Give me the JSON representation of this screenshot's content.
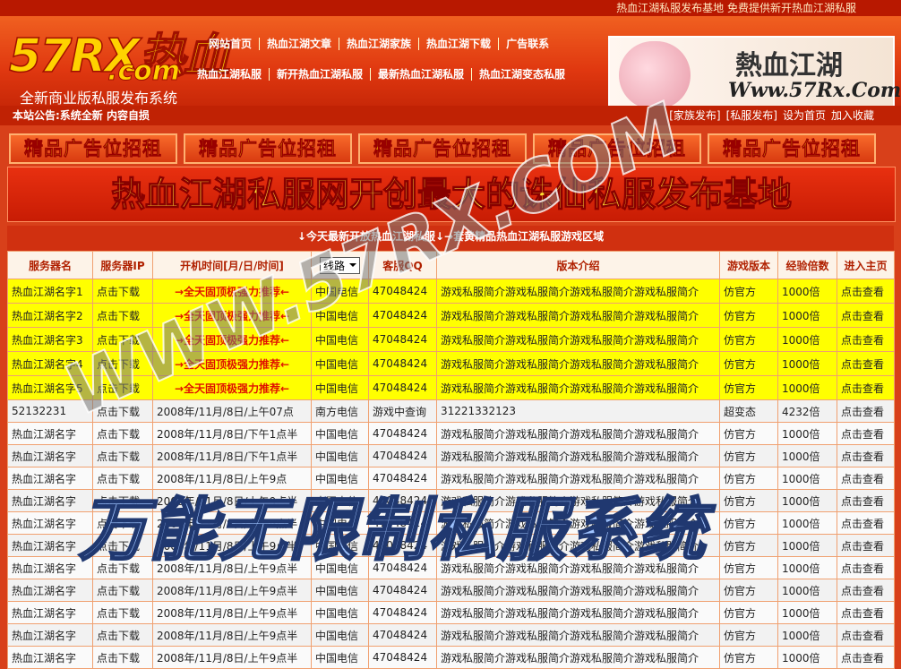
{
  "top_bar": "热血江湖私服发布基地 免费提供新开热血江湖私服",
  "logo": {
    "main": "57RX热血",
    "domain": ".com",
    "slogan": "全新商业版私服发布系统"
  },
  "nav": {
    "row1": [
      "网站首页",
      "热血江湖文章",
      "热血江湖家族",
      "热血江湖下载",
      "广告联系"
    ],
    "row2": [
      "热血江湖私服",
      "新开热血江湖私服",
      "最新热血江湖私服",
      "热血江湖变态私服"
    ]
  },
  "banner_image": {
    "title": "熱血江湖",
    "url": "Www.57Rx.Com"
  },
  "notice": "本站公告:系统全新 内容自损",
  "links": [
    "[家族发布]",
    "[私服发布]",
    "设为首页",
    "加入收藏"
  ],
  "ads": [
    "精品广告位招租",
    "精品广告位招租",
    "精品广告位招租",
    "精品广告位招租",
    "精品广告位招租"
  ],
  "headline": "热血江湖私服网开创最大的诛仙私服发布基地",
  "section_title": "↓今天最新开放热血江湖私服↓→套黄精品热血江湖私服游戏区域",
  "table": {
    "headers": [
      "服务器名",
      "服务器IP",
      "开机时间[月/日/时间]",
      "线路",
      "客服QQ",
      "版本介绍",
      "游戏版本",
      "经验倍数",
      "进入主页"
    ],
    "featured_rows": [
      [
        "热血江湖名字1",
        "点击下载",
        "→全天固顶极强力推荐←",
        "中国电信",
        "47048424",
        "游戏私服简介游戏私服简介游戏私服简介游戏私服简介",
        "仿官方",
        "1000倍",
        "点击查看"
      ],
      [
        "热血江湖名字2",
        "点击下载",
        "→全天固顶极强力推荐←",
        "中国电信",
        "47048424",
        "游戏私服简介游戏私服简介游戏私服简介游戏私服简介",
        "仿官方",
        "1000倍",
        "点击查看"
      ],
      [
        "热血江湖名字3",
        "点击下载",
        "→全天固顶极强力推荐←",
        "中国电信",
        "47048424",
        "游戏私服简介游戏私服简介游戏私服简介游戏私服简介",
        "仿官方",
        "1000倍",
        "点击查看"
      ],
      [
        "热血江湖名字4",
        "点击下载",
        "→全天固顶极强力推荐←",
        "中国电信",
        "47048424",
        "游戏私服简介游戏私服简介游戏私服简介游戏私服简介",
        "仿官方",
        "1000倍",
        "点击查看"
      ],
      [
        "热血江湖名字5",
        "点击下载",
        "→全天固顶极强力推荐←",
        "中国电信",
        "47048424",
        "游戏私服简介游戏私服简介游戏私服简介游戏私服简介",
        "仿官方",
        "1000倍",
        "点击查看"
      ]
    ],
    "rows": [
      [
        "52132231",
        "点击下载",
        "2008年/11月/8日/上午07点",
        "南方电信",
        "游戏中查询",
        "31221332123",
        "超变态",
        "4232倍",
        "点击查看"
      ],
      [
        "热血江湖名字",
        "点击下载",
        "2008年/11月/8日/下午1点半",
        "中国电信",
        "47048424",
        "游戏私服简介游戏私服简介游戏私服简介游戏私服简介",
        "仿官方",
        "1000倍",
        "点击查看"
      ],
      [
        "热血江湖名字",
        "点击下载",
        "2008年/11月/8日/下午1点半",
        "中国电信",
        "47048424",
        "游戏私服简介游戏私服简介游戏私服简介游戏私服简介",
        "仿官方",
        "1000倍",
        "点击查看"
      ],
      [
        "热血江湖名字",
        "点击下载",
        "2008年/11月/8日/上午9点",
        "中国电信",
        "47048424",
        "游戏私服简介游戏私服简介游戏私服简介游戏私服简介",
        "仿官方",
        "1000倍",
        "点击查看"
      ],
      [
        "热血江湖名字",
        "点击下载",
        "2008年/11月/8日/上午9点半",
        "中国电信",
        "47048424",
        "游戏私服简介游戏私服简介游戏私服简介游戏私服简介",
        "仿官方",
        "1000倍",
        "点击查看"
      ],
      [
        "热血江湖名字",
        "点击下载",
        "2008年/11月/8日/上午9点半",
        "中国电信",
        "47048424",
        "游戏私服简介游戏私服简介游戏私服简介游戏私服简介",
        "仿官方",
        "1000倍",
        "点击查看"
      ],
      [
        "热血江湖名字",
        "点击下载",
        "2008年/11月/8日/上午9点半",
        "中国电信",
        "47048424",
        "游戏私服简介游戏私服简介游戏私服简介游戏私服简介",
        "仿官方",
        "1000倍",
        "点击查看"
      ],
      [
        "热血江湖名字",
        "点击下载",
        "2008年/11月/8日/上午9点半",
        "中国电信",
        "47048424",
        "游戏私服简介游戏私服简介游戏私服简介游戏私服简介",
        "仿官方",
        "1000倍",
        "点击查看"
      ],
      [
        "热血江湖名字",
        "点击下载",
        "2008年/11月/8日/上午9点半",
        "中国电信",
        "47048424",
        "游戏私服简介游戏私服简介游戏私服简介游戏私服简介",
        "仿官方",
        "1000倍",
        "点击查看"
      ],
      [
        "热血江湖名字",
        "点击下载",
        "2008年/11月/8日/上午9点半",
        "中国电信",
        "47048424",
        "游戏私服简介游戏私服简介游戏私服简介游戏私服简介",
        "仿官方",
        "1000倍",
        "点击查看"
      ],
      [
        "热血江湖名字",
        "点击下载",
        "2008年/11月/8日/上午9点半",
        "中国电信",
        "47048424",
        "游戏私服简介游戏私服简介游戏私服简介游戏私服简介",
        "仿官方",
        "1000倍",
        "点击查看"
      ],
      [
        "热血江湖名字",
        "点击下载",
        "2008年/11月/8日/上午9点半",
        "中国电信",
        "47048424",
        "游戏私服简介游戏私服简介游戏私服简介游戏私服简介",
        "仿官方",
        "1000倍",
        "点击查看"
      ]
    ]
  },
  "watermarks": [
    "WWW.57RX.COM",
    "万能无限制私服系统"
  ]
}
